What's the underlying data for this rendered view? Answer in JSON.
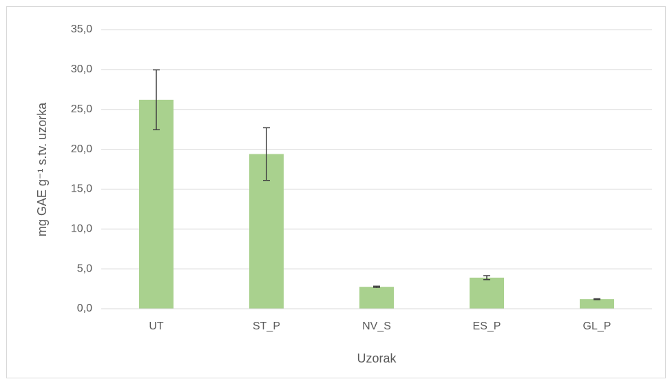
{
  "chart_data": {
    "type": "bar",
    "x_label": "Uzorak",
    "y_label": "mg GAE g⁻¹ s.tv. uzorka",
    "categories": [
      "UT",
      "ST_P",
      "NV_S",
      "ES_P",
      "GL_P"
    ],
    "values": [
      26.2,
      19.4,
      2.75,
      3.9,
      1.2
    ],
    "errors": [
      3.75,
      3.3,
      0.08,
      0.25,
      0.05
    ],
    "color": "#a9d18e",
    "error_color": "#404040",
    "ylim": [
      0,
      35
    ],
    "yticks": [
      {
        "value": 0,
        "label": "0,0"
      },
      {
        "value": 5,
        "label": "5,0"
      },
      {
        "value": 10,
        "label": "10,0"
      },
      {
        "value": 15,
        "label": "15,0"
      },
      {
        "value": 20,
        "label": "20,0"
      },
      {
        "value": 25,
        "label": "25,0"
      },
      {
        "value": 30,
        "label": "30,0"
      },
      {
        "value": 35,
        "label": "35,0"
      }
    ],
    "grid": true
  }
}
